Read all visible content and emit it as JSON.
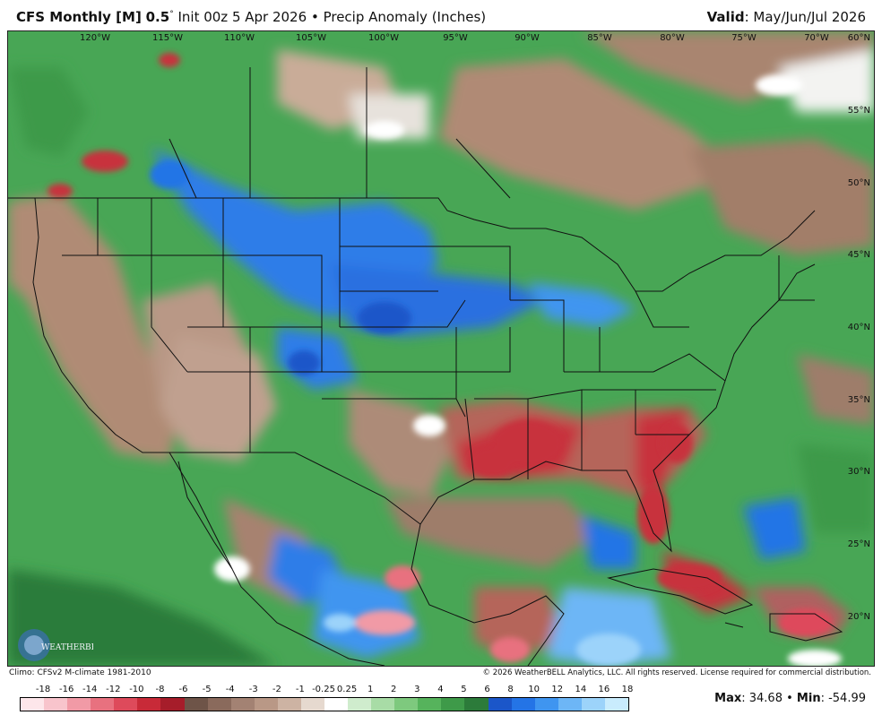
{
  "header": {
    "model": "CFS Monthly [M]",
    "resolution": "0.5",
    "degree_symbol": "°",
    "init": "Init 00z 5 Apr 2026",
    "bullet": "•",
    "product": "Precip Anomaly (Inches)",
    "valid_label": "Valid",
    "valid_value": ": May/Jun/Jul 2026"
  },
  "map": {
    "longitudes": [
      "120°W",
      "115°W",
      "110°W",
      "105°W",
      "100°W",
      "95°W",
      "90°W",
      "85°W",
      "80°W",
      "75°W",
      "70°W"
    ],
    "latitudes": [
      "60°N",
      "55°N",
      "50°N",
      "45°N",
      "40°N",
      "35°N",
      "30°N",
      "25°N",
      "20°N"
    ]
  },
  "footer": {
    "climo": "Climo: CFSv2 M-climate 1981-2010",
    "copyright": "© 2026 WeatherBELL Analytics, LLC. All rights reserved. License required for commercial distribution.",
    "logo_text": "WEATHERBELL"
  },
  "legend": {
    "labels": [
      "-18",
      "-16",
      "-14",
      "-12",
      "-10",
      "-8",
      "-6",
      "-5",
      "-4",
      "-3",
      "-2",
      "-1",
      "-0.25",
      "0.25",
      "1",
      "2",
      "3",
      "4",
      "5",
      "6",
      "8",
      "10",
      "12",
      "14",
      "16",
      "18"
    ],
    "colors": [
      "#fde6ea",
      "#f8c4cc",
      "#f19aa6",
      "#e8717f",
      "#de4a5b",
      "#c82a38",
      "#a61d2a",
      "#6e5448",
      "#8a6a5c",
      "#a38273",
      "#b99886",
      "#cdb3a3",
      "#e6d9cf",
      "#ffffff",
      "#cfeccd",
      "#a8dca6",
      "#7ec97e",
      "#56b35c",
      "#3e9a49",
      "#2c7b3a",
      "#1b56c9",
      "#2474e6",
      "#3f95f0",
      "#6db6f6",
      "#9cd3fa",
      "#c9ecfd"
    ]
  },
  "stats": {
    "max_label": "Max",
    "max_value": ": 34.68",
    "bullet": " • ",
    "min_label": "Min",
    "min_value": ": -54.99"
  }
}
